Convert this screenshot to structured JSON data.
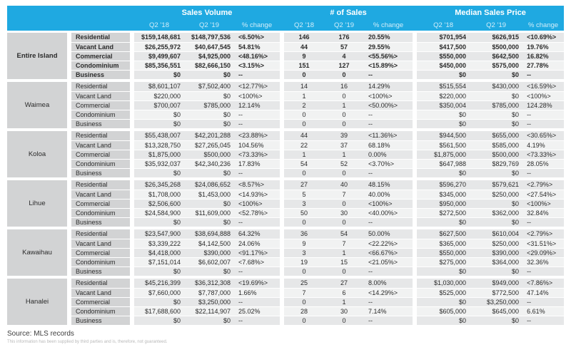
{
  "chart_data": {
    "type": "table",
    "column_groups": [
      "Sales Volume",
      "# of Sales",
      "Median Sales Price"
    ],
    "sub_columns": [
      "Q2 ’18",
      "Q2 ’19",
      "% change"
    ],
    "regions": [
      {
        "name": "Entire Island",
        "emphasis": true,
        "rows": [
          {
            "type": "Residential",
            "sales_volume": [
              "$159,148,681",
              "$148,797,536",
              "<6.50%>"
            ],
            "num_sales": [
              "146",
              "176",
              "20.55%"
            ],
            "median_price": [
              "$701,954",
              "$626,915",
              "<10.69%>"
            ]
          },
          {
            "type": "Vacant Land",
            "sales_volume": [
              "$26,255,972",
              "$40,647,545",
              "54.81%"
            ],
            "num_sales": [
              "44",
              "57",
              "29.55%"
            ],
            "median_price": [
              "$417,500",
              "$500,000",
              "19.76%"
            ]
          },
          {
            "type": "Commercial",
            "sales_volume": [
              "$9,499,607",
              "$4,925,000",
              "<48.16%>"
            ],
            "num_sales": [
              "9",
              "4",
              "<55.56%>"
            ],
            "median_price": [
              "$550,000",
              "$642,500",
              "16.82%"
            ]
          },
          {
            "type": "Condominium",
            "sales_volume": [
              "$85,356,551",
              "$82,666,150",
              "<3.15%>"
            ],
            "num_sales": [
              "151",
              "127",
              "<15.89%>"
            ],
            "median_price": [
              "$450,000",
              "$575,000",
              "27.78%"
            ]
          },
          {
            "type": "Business",
            "sales_volume": [
              "$0",
              "$0",
              "--"
            ],
            "num_sales": [
              "0",
              "0",
              "--"
            ],
            "median_price": [
              "$0",
              "$0",
              "--"
            ]
          }
        ]
      },
      {
        "name": "Waimea",
        "emphasis": false,
        "rows": [
          {
            "type": "Residential",
            "sales_volume": [
              "$8,601,107",
              "$7,502,400",
              "<12.77%>"
            ],
            "num_sales": [
              "14",
              "16",
              "14.29%"
            ],
            "median_price": [
              "$515,554",
              "$430,000",
              "<16.59%>"
            ]
          },
          {
            "type": "Vacant Land",
            "sales_volume": [
              "$220,000",
              "$0",
              "<100%>"
            ],
            "num_sales": [
              "1",
              "0",
              "<100%>"
            ],
            "median_price": [
              "$220,000",
              "$0",
              "<100%>"
            ]
          },
          {
            "type": "Commercial",
            "sales_volume": [
              "$700,007",
              "$785,000",
              "12.14%"
            ],
            "num_sales": [
              "2",
              "1",
              "<50.00%>"
            ],
            "median_price": [
              "$350,004",
              "$785,000",
              "124.28%"
            ]
          },
          {
            "type": "Condominium",
            "sales_volume": [
              "$0",
              "$0",
              "--"
            ],
            "num_sales": [
              "0",
              "0",
              "--"
            ],
            "median_price": [
              "$0",
              "$0",
              "--"
            ]
          },
          {
            "type": "Business",
            "sales_volume": [
              "$0",
              "$0",
              "--"
            ],
            "num_sales": [
              "0",
              "0",
              "--"
            ],
            "median_price": [
              "$0",
              "$0",
              "--"
            ]
          }
        ]
      },
      {
        "name": "Koloa",
        "emphasis": false,
        "rows": [
          {
            "type": "Residential",
            "sales_volume": [
              "$55,438,007",
              "$42,201,288",
              "<23.88%>"
            ],
            "num_sales": [
              "44",
              "39",
              "<11.36%>"
            ],
            "median_price": [
              "$944,500",
              "$655,000",
              "<30.65%>"
            ]
          },
          {
            "type": "Vacant Land",
            "sales_volume": [
              "$13,328,750",
              "$27,265,045",
              "104.56%"
            ],
            "num_sales": [
              "22",
              "37",
              "68.18%"
            ],
            "median_price": [
              "$561,500",
              "$585,000",
              "4.19%"
            ]
          },
          {
            "type": "Commercial",
            "sales_volume": [
              "$1,875,000",
              "$500,000",
              "<73.33%>"
            ],
            "num_sales": [
              "1",
              "1",
              "0.00%"
            ],
            "median_price": [
              "$1,875,000",
              "$500,000",
              "<73.33%>"
            ]
          },
          {
            "type": "Condominium",
            "sales_volume": [
              "$35,932,037",
              "$42,340,236",
              "17.83%"
            ],
            "num_sales": [
              "54",
              "52",
              "<3.70%>"
            ],
            "median_price": [
              "$647,988",
              "$829,769",
              "28.05%"
            ]
          },
          {
            "type": "Business",
            "sales_volume": [
              "$0",
              "$0",
              "--"
            ],
            "num_sales": [
              "0",
              "0",
              "--"
            ],
            "median_price": [
              "$0",
              "$0",
              "--"
            ]
          }
        ]
      },
      {
        "name": "Lihue",
        "emphasis": false,
        "rows": [
          {
            "type": "Residential",
            "sales_volume": [
              "$26,345,268",
              "$24,086,652",
              "<8.57%>"
            ],
            "num_sales": [
              "27",
              "40",
              "48.15%"
            ],
            "median_price": [
              "$596,270",
              "$579,621",
              "<2.79%>"
            ]
          },
          {
            "type": "Vacant Land",
            "sales_volume": [
              "$1,708,000",
              "$1,453,000",
              "<14.93%>"
            ],
            "num_sales": [
              "5",
              "7",
              "40.00%"
            ],
            "median_price": [
              "$345,000",
              "$250,000",
              "<27.54%>"
            ]
          },
          {
            "type": "Commercial",
            "sales_volume": [
              "$2,506,600",
              "$0",
              "<100%>"
            ],
            "num_sales": [
              "3",
              "0",
              "<100%>"
            ],
            "median_price": [
              "$950,000",
              "$0",
              "<100%>"
            ]
          },
          {
            "type": "Condominium",
            "sales_volume": [
              "$24,584,900",
              "$11,609,000",
              "<52.78%>"
            ],
            "num_sales": [
              "50",
              "30",
              "<40.00%>"
            ],
            "median_price": [
              "$272,500",
              "$362,000",
              "32.84%"
            ]
          },
          {
            "type": "Business",
            "sales_volume": [
              "$0",
              "$0",
              "--"
            ],
            "num_sales": [
              "0",
              "0",
              "--"
            ],
            "median_price": [
              "$0",
              "$0",
              "--"
            ]
          }
        ]
      },
      {
        "name": "Kawaihau",
        "emphasis": false,
        "rows": [
          {
            "type": "Residential",
            "sales_volume": [
              "$23,547,900",
              "$38,694,888",
              "64.32%"
            ],
            "num_sales": [
              "36",
              "54",
              "50.00%"
            ],
            "median_price": [
              "$627,500",
              "$610,004",
              "<2.79%>"
            ]
          },
          {
            "type": "Vacant Land",
            "sales_volume": [
              "$3,339,222",
              "$4,142,500",
              "24.06%"
            ],
            "num_sales": [
              "9",
              "7",
              "<22.22%>"
            ],
            "median_price": [
              "$365,000",
              "$250,000",
              "<31.51%>"
            ]
          },
          {
            "type": "Commercial",
            "sales_volume": [
              "$4,418,000",
              "$390,000",
              "<91.17%>"
            ],
            "num_sales": [
              "3",
              "1",
              "<66.67%>"
            ],
            "median_price": [
              "$550,000",
              "$390,000",
              "<29.09%>"
            ]
          },
          {
            "type": "Condominium",
            "sales_volume": [
              "$7,151,014",
              "$6,602,007",
              "<7.68%>"
            ],
            "num_sales": [
              "19",
              "15",
              "<21.05%>"
            ],
            "median_price": [
              "$275,000",
              "$364,000",
              "32.36%"
            ]
          },
          {
            "type": "Business",
            "sales_volume": [
              "$0",
              "$0",
              "--"
            ],
            "num_sales": [
              "0",
              "0",
              "--"
            ],
            "median_price": [
              "$0",
              "$0",
              "--"
            ]
          }
        ]
      },
      {
        "name": "Hanalei",
        "emphasis": false,
        "rows": [
          {
            "type": "Residential",
            "sales_volume": [
              "$45,216,399",
              "$36,312,308",
              "<19.69%>"
            ],
            "num_sales": [
              "25",
              "27",
              "8.00%"
            ],
            "median_price": [
              "$1,030,000",
              "$949,000",
              "<7.86%>"
            ]
          },
          {
            "type": "Vacant Land",
            "sales_volume": [
              "$7,660,000",
              "$7,787,000",
              "1.66%"
            ],
            "num_sales": [
              "7",
              "6",
              "<14.29%>"
            ],
            "median_price": [
              "$525,000",
              "$772,500",
              "47.14%"
            ]
          },
          {
            "type": "Commercial",
            "sales_volume": [
              "$0",
              "$3,250,000",
              "--"
            ],
            "num_sales": [
              "0",
              "1",
              "--"
            ],
            "median_price": [
              "$0",
              "$3,250,000",
              "--"
            ]
          },
          {
            "type": "Condominium",
            "sales_volume": [
              "$17,688,600",
              "$22,114,907",
              "25.02%"
            ],
            "num_sales": [
              "28",
              "30",
              "7.14%"
            ],
            "median_price": [
              "$605,000",
              "$645,000",
              "6.61%"
            ]
          },
          {
            "type": "Business",
            "sales_volume": [
              "$0",
              "$0",
              "--"
            ],
            "num_sales": [
              "0",
              "0",
              "--"
            ],
            "median_price": [
              "$0",
              "$0",
              "--"
            ]
          }
        ]
      }
    ]
  },
  "footer": {
    "source": "Source: MLS records",
    "disclaimer": "This information has been supplied by third parties and is, therefore, not guaranteed."
  },
  "colors": {
    "header_bg": "#1FA9E1",
    "header_text": "#FFFFFF",
    "header_subtext": "#D2EEFA",
    "label_column_bg": "#D2D3D4",
    "row_alt_dark": "#E6E7E8",
    "row_alt_light": "#F1F2F2",
    "text": "#2B2B2B"
  }
}
